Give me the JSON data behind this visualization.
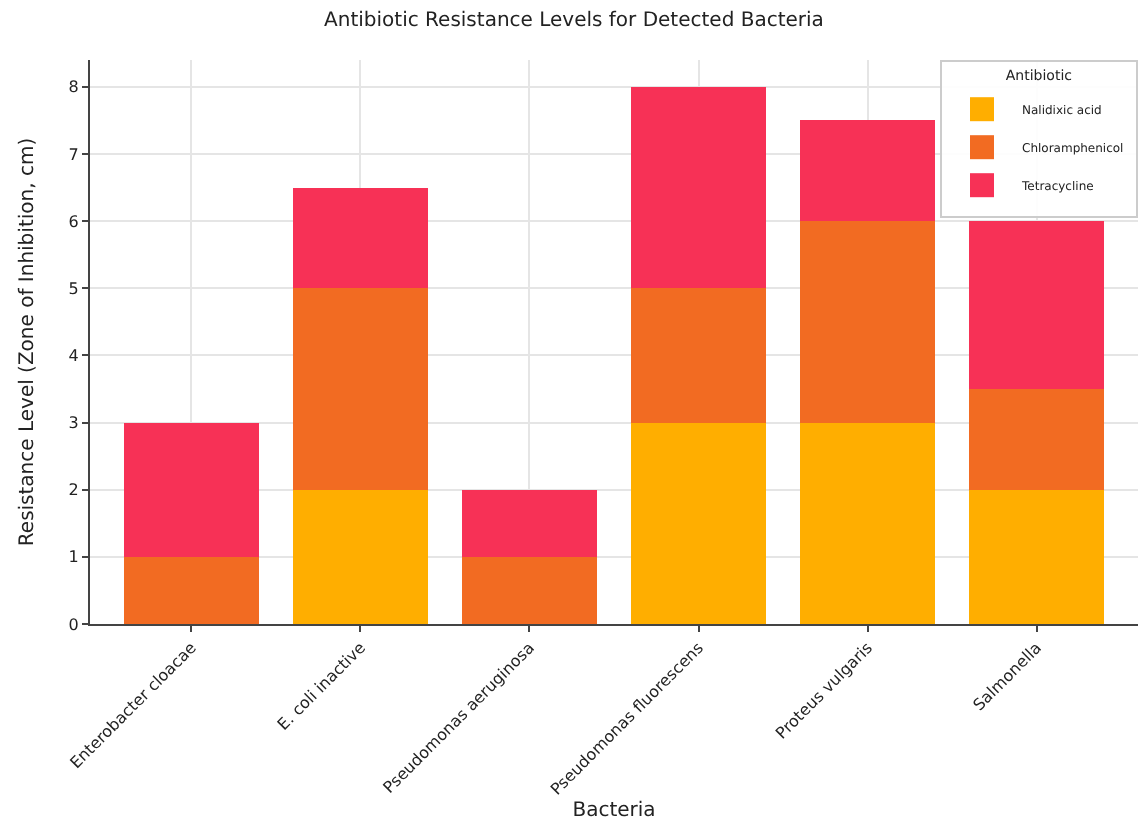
{
  "chart_data": {
    "type": "bar",
    "stacked": true,
    "title": "Antibiotic Resistance Levels for Detected Bacteria",
    "xlabel": "Bacteria",
    "ylabel": "Resistance Level (Zone of Inhibition, cm)",
    "legend_title": "Antibiotic",
    "categories": [
      "Enterobacter cloacae",
      "E. coli inactive",
      "Pseudomonas aeruginosa",
      "Pseudomonas fluorescens",
      "Proteus vulgaris",
      "Salmonella"
    ],
    "series": [
      {
        "name": "Nalidixic acid",
        "color": "#ffae00",
        "values": [
          0,
          2,
          0,
          3,
          3,
          2
        ]
      },
      {
        "name": "Chloramphenicol",
        "color": "#f26b22",
        "values": [
          1,
          3,
          1,
          2,
          3,
          1.5
        ]
      },
      {
        "name": "Tetracycline",
        "color": "#f73156",
        "values": [
          2,
          1.5,
          1,
          3,
          1.5,
          2.5
        ]
      }
    ],
    "ylim": [
      0,
      8.4
    ],
    "yticks": [
      0,
      1,
      2,
      3,
      4,
      5,
      6,
      7,
      8
    ],
    "grid": true,
    "legend": "top right"
  }
}
